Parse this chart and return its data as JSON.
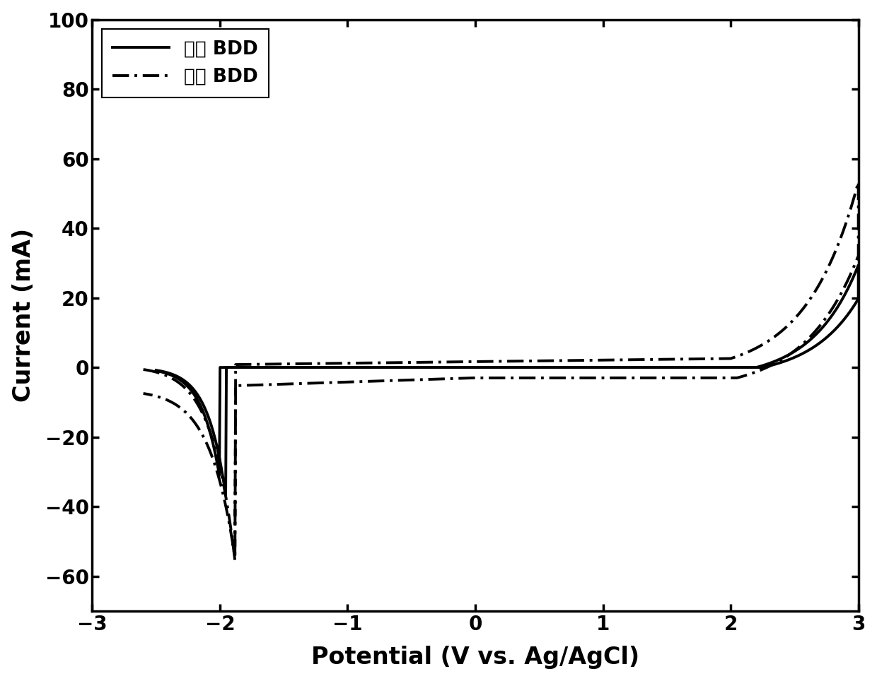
{
  "title": "",
  "xlabel": "Potential (V vs. Ag/AgCl)",
  "ylabel": "Current (mA)",
  "xlim": [
    -3,
    3
  ],
  "ylim": [
    -70,
    100
  ],
  "xticks": [
    -3,
    -2,
    -1,
    0,
    1,
    2,
    3
  ],
  "yticks": [
    -60,
    -40,
    -20,
    0,
    20,
    40,
    60,
    80,
    100
  ],
  "legend_labels": [
    "平面 BDD",
    "多孔 BDD"
  ],
  "line_color": "#000000",
  "background_color": "#ffffff",
  "linewidth": 2.8
}
